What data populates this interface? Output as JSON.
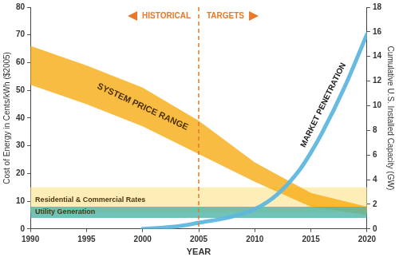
{
  "chart_data": {
    "type": "line",
    "x_label": "YEAR",
    "y_label": "Cost of Energy in Cents/kWh ($2005)",
    "y2_label": "Cumulative U.S. Installed Capacity (GW)",
    "xlim": [
      1990,
      2020
    ],
    "xticks": [
      1990,
      1995,
      2000,
      2005,
      2010,
      2015,
      2020
    ],
    "ylim": [
      0,
      80
    ],
    "yticks": [
      0,
      10,
      20,
      30,
      40,
      50,
      60,
      70,
      80
    ],
    "y2lim": [
      0,
      18
    ],
    "y2ticks": [
      0,
      2,
      4,
      6,
      8,
      10,
      12,
      14,
      16,
      18
    ],
    "grid": false,
    "divider": {
      "x": 2005,
      "labels": [
        "HISTORICAL",
        "TARGETS"
      ]
    },
    "series": [
      {
        "name": "Residential & Commercial Rates",
        "type": "area",
        "color": "#fde9a6",
        "x": [
          1990,
          2020
        ],
        "low": [
          6,
          6
        ],
        "high": [
          15,
          15
        ]
      },
      {
        "name": "SYSTEM PRICE RANGE",
        "type": "area",
        "color": "#f7ad1a",
        "x": [
          1990,
          1995,
          2000,
          2005,
          2010,
          2015,
          2020
        ],
        "low": [
          52,
          45,
          37,
          27,
          17,
          8,
          5
        ],
        "high": [
          66,
          59,
          51,
          39,
          24,
          13,
          8
        ]
      },
      {
        "name": "Utility Generation",
        "type": "area",
        "color": "#52b6aa",
        "x": [
          1990,
          2020
        ],
        "low": [
          4,
          4
        ],
        "high": [
          8,
          8
        ]
      },
      {
        "name": "MARKET PENETRATION",
        "type": "line",
        "color": "#5fb7de",
        "axis": "y2",
        "x": [
          2000,
          2003,
          2005,
          2008,
          2010,
          2012,
          2014,
          2015,
          2016,
          2018,
          2020
        ],
        "values": [
          0,
          0.2,
          0.5,
          1.0,
          1.6,
          2.8,
          4.8,
          6.2,
          7.8,
          11.5,
          15.8
        ]
      }
    ]
  }
}
